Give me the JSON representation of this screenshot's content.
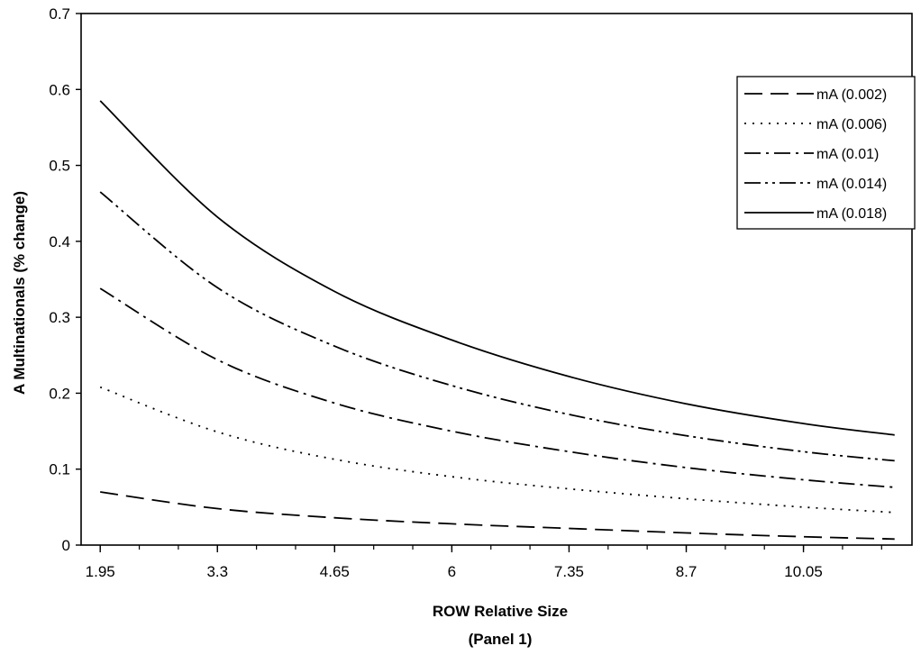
{
  "chart_data": {
    "type": "line",
    "title": "",
    "xlabel": "ROW Relative Size",
    "xlabel_sub": "(Panel 1)",
    "ylabel": "A Multinationals (% change)",
    "xlim": [
      1.73,
      11.3
    ],
    "ylim": [
      0,
      0.7
    ],
    "x_ticks": [
      "1.95",
      "3.3",
      "4.65",
      "6",
      "7.35",
      "8.7",
      "10.05"
    ],
    "y_ticks": [
      "0",
      "0.1",
      "0.2",
      "0.3",
      "0.4",
      "0.5",
      "0.6",
      "0.7"
    ],
    "grid": false,
    "legend_position": "top-right",
    "x": [
      1.95,
      3.3,
      4.65,
      6,
      7.35,
      8.7,
      10.05,
      11.1
    ],
    "series": [
      {
        "name": "mA (0.002)",
        "dash": "long-dash",
        "values": [
          0.07,
          0.048,
          0.036,
          0.028,
          0.022,
          0.016,
          0.011,
          0.008
        ]
      },
      {
        "name": "mA (0.006)",
        "dash": "dotted",
        "values": [
          0.208,
          0.149,
          0.113,
          0.09,
          0.074,
          0.061,
          0.05,
          0.043
        ]
      },
      {
        "name": "mA (0.01)",
        "dash": "dash-dot",
        "values": [
          0.338,
          0.244,
          0.187,
          0.15,
          0.123,
          0.102,
          0.086,
          0.076
        ]
      },
      {
        "name": "mA (0.014)",
        "dash": "dash-dot-dot",
        "values": [
          0.465,
          0.339,
          0.262,
          0.21,
          0.172,
          0.144,
          0.123,
          0.111
        ]
      },
      {
        "name": "mA (0.018)",
        "dash": "solid",
        "values": [
          0.585,
          0.432,
          0.334,
          0.27,
          0.222,
          0.186,
          0.16,
          0.145
        ]
      }
    ]
  }
}
